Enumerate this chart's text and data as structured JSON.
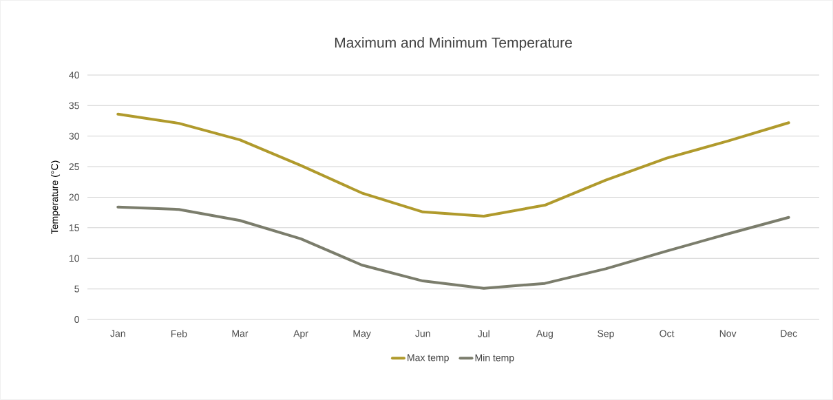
{
  "chart_data": {
    "type": "line",
    "title": "Maximum and Minimum Temperature",
    "ylabel": "Temperature (°C)",
    "categories": [
      "Jan",
      "Feb",
      "Mar",
      "Apr",
      "May",
      "Jun",
      "Jul",
      "Aug",
      "Sep",
      "Oct",
      "Nov",
      "Dec"
    ],
    "series": [
      {
        "name": "Max temp",
        "color": "#b09a2c",
        "values": [
          33.6,
          32.1,
          29.4,
          25.2,
          20.7,
          17.6,
          16.9,
          18.7,
          22.8,
          26.4,
          29.2,
          32.2
        ]
      },
      {
        "name": "Min temp",
        "color": "#7b7d6c",
        "values": [
          18.4,
          18.0,
          16.2,
          13.2,
          8.9,
          6.3,
          5.1,
          5.9,
          8.3,
          11.2,
          14.0,
          16.7
        ]
      }
    ],
    "ylim": [
      0,
      40
    ],
    "yticks": [
      0,
      5,
      10,
      15,
      20,
      25,
      30,
      35,
      40
    ],
    "grid": "y",
    "legend": "bottom",
    "marker": "none",
    "line_style": "solid"
  }
}
